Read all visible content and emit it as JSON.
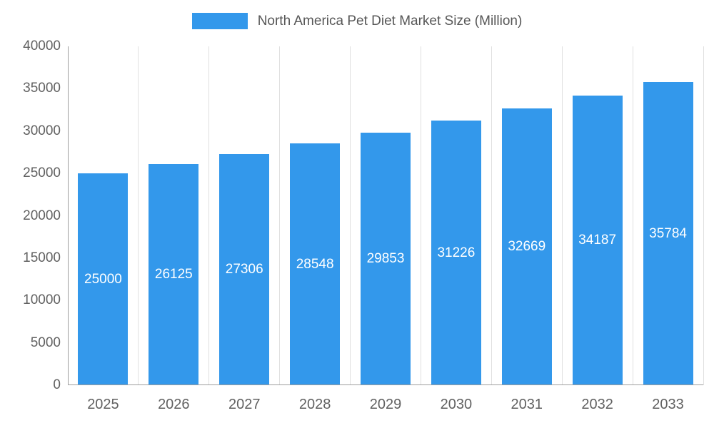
{
  "chart_data": {
    "type": "bar",
    "title": "North America Pet Diet Market Size (Million)",
    "categories": [
      "2025",
      "2026",
      "2027",
      "2028",
      "2029",
      "2030",
      "2031",
      "2032",
      "2033"
    ],
    "values": [
      25000,
      26125,
      27306,
      28548,
      29853,
      31226,
      32669,
      34187,
      35784
    ],
    "xlabel": "",
    "ylabel": "",
    "ylim": [
      0,
      40000
    ],
    "ytick_step": 5000,
    "ytick_labels": [
      "0",
      "5000",
      "10000",
      "15000",
      "20000",
      "25000",
      "30000",
      "35000",
      "40000"
    ],
    "grid": "vertical",
    "legend_position": "top-center",
    "bar_color": "#3398eb",
    "value_label_color": "#ffffff",
    "axis_text_color": "#616161",
    "title_color": "#575757",
    "grid_color": "#e0e0e0",
    "axis_line_color": "#9e9e9e"
  }
}
